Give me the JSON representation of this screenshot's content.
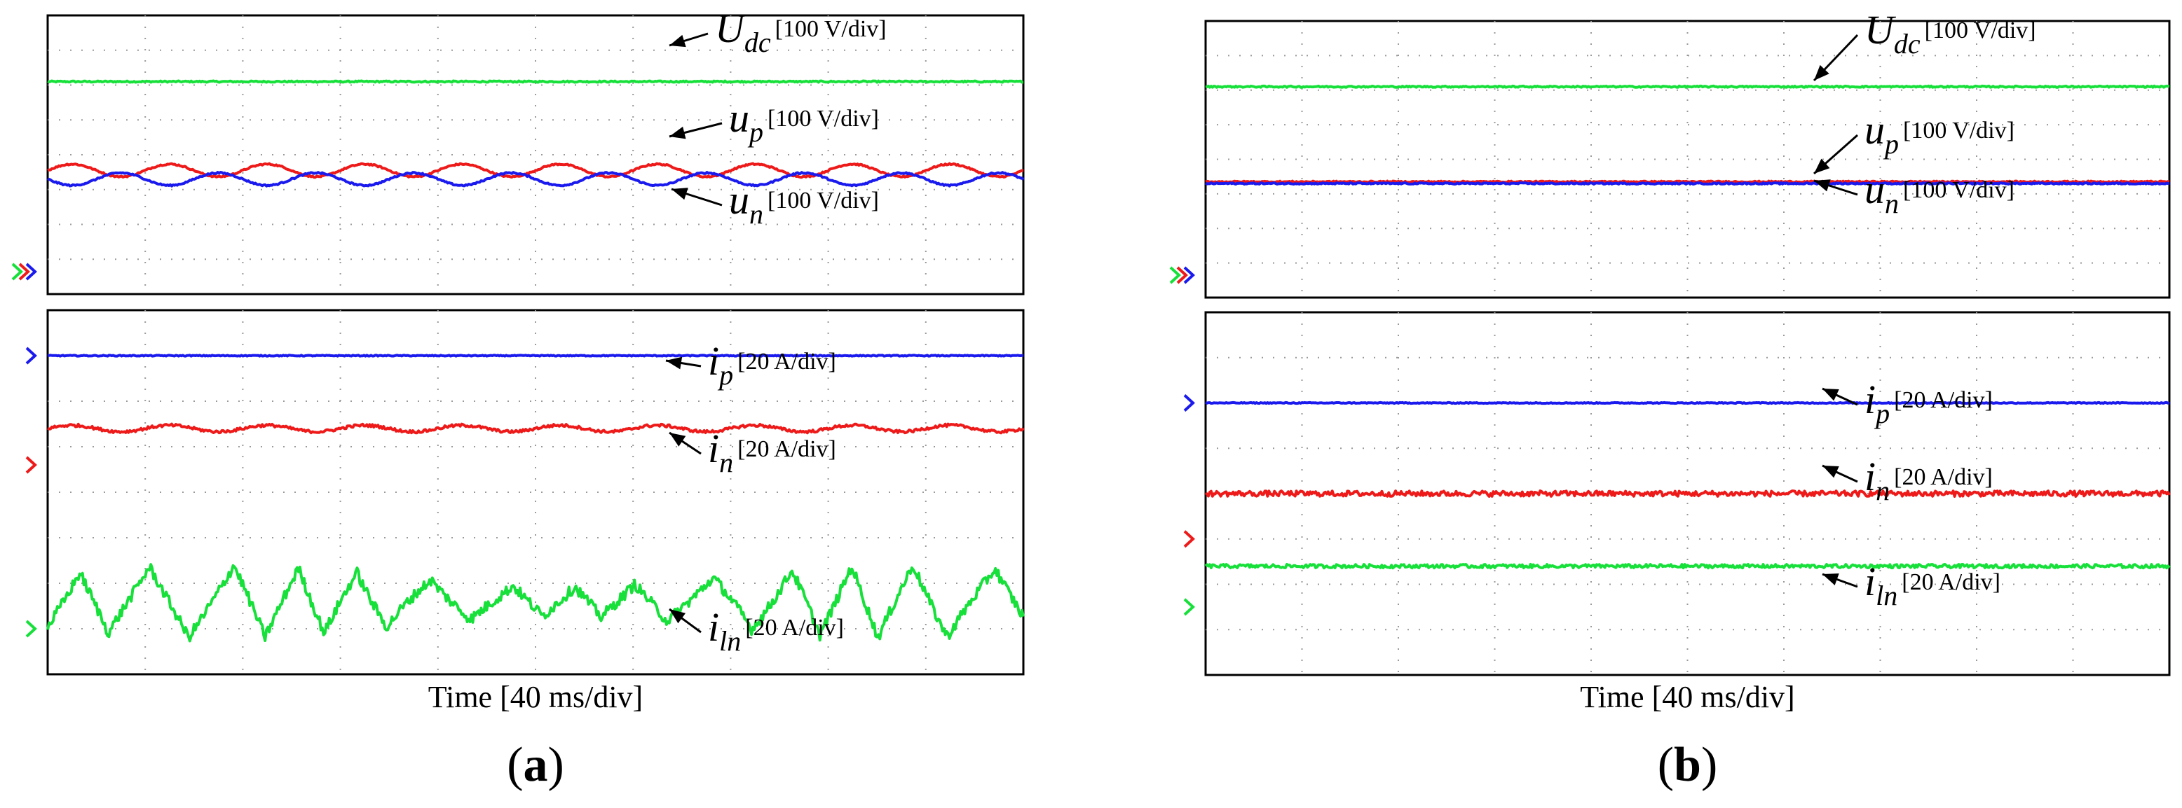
{
  "colors": {
    "green": "#17e03a",
    "red": "#ee1a1a",
    "blue": "#1a1aee",
    "grid": "#9a9a9a",
    "frame": "#000000"
  },
  "chart_data": [
    {
      "type": "line",
      "panel_label": "(a)",
      "time_label": "Time [40 ms/div]",
      "x_divisions": 10,
      "upper": {
        "y_divisions": 8,
        "series": [
          {
            "id": "udc",
            "name_main": "U",
            "name_sub": "dc",
            "scale": "[100 V/div]",
            "color": "green",
            "level_div": 6.1,
            "osc": {
              "amp": 0.0,
              "cycles": 0,
              "noise": 0.02
            }
          },
          {
            "id": "up",
            "name_main": "u",
            "name_sub": "p",
            "scale": "[100 V/div]",
            "color": "red",
            "level_div": 3.55,
            "osc": {
              "amp": 0.18,
              "cycles": 10,
              "noise": 0.02
            }
          },
          {
            "id": "un",
            "name_main": "u",
            "name_sub": "n",
            "scale": "[100 V/div]",
            "color": "blue",
            "level_div": 3.3,
            "osc": {
              "amp": 0.18,
              "cycles": 10,
              "noise": 0.02,
              "phase": 3.14
            }
          }
        ],
        "markers": [
          "green",
          "red",
          "blue"
        ]
      },
      "lower": {
        "y_divisions": 8,
        "series": [
          {
            "id": "ip",
            "name_main": "i",
            "name_sub": "p",
            "scale": "[20 A/div]",
            "color": "blue",
            "level_div": 7.0,
            "osc": {
              "amp": 0.0,
              "cycles": 0,
              "noise": 0.01
            }
          },
          {
            "id": "in",
            "name_main": "i",
            "name_sub": "n",
            "scale": "[20 A/div]",
            "color": "red",
            "level_div": 5.4,
            "osc": {
              "amp": 0.07,
              "cycles": 10,
              "noise": 0.03
            }
          },
          {
            "id": "iln",
            "name_main": "i",
            "name_sub": "ln",
            "scale": "[20 A/div]",
            "color": "green",
            "level_div": 1.6,
            "osc": {
              "amp": 0.8,
              "cycles": 14,
              "noise": 0.12,
              "sawtooth": true
            }
          }
        ],
        "markers": [
          {
            "color": "blue",
            "level_div": 7.0
          },
          {
            "color": "red",
            "level_div": 4.6
          },
          {
            "color": "green",
            "level_div": 1.0
          }
        ]
      }
    },
    {
      "type": "line",
      "panel_label": "(b)",
      "time_label": "Time [40 ms/div]",
      "x_divisions": 10,
      "upper": {
        "y_divisions": 8,
        "series": [
          {
            "id": "udc",
            "name_main": "U",
            "name_sub": "dc",
            "scale": "[100 V/div]",
            "color": "green",
            "level_div": 6.1,
            "osc": {
              "amp": 0.0,
              "cycles": 0,
              "noise": 0.02
            }
          },
          {
            "id": "up",
            "name_main": "u",
            "name_sub": "p",
            "scale": "[100 V/div]",
            "color": "red",
            "level_div": 3.35,
            "osc": {
              "amp": 0.0,
              "cycles": 0,
              "noise": 0.02
            }
          },
          {
            "id": "un",
            "name_main": "u",
            "name_sub": "n",
            "scale": "[100 V/div]",
            "color": "blue",
            "level_div": 3.3,
            "osc": {
              "amp": 0.0,
              "cycles": 0,
              "noise": 0.02
            }
          }
        ],
        "markers": [
          "green",
          "red",
          "blue"
        ]
      },
      "lower": {
        "y_divisions": 8,
        "series": [
          {
            "id": "ip",
            "name_main": "i",
            "name_sub": "p",
            "scale": "[20 A/div]",
            "color": "blue",
            "level_div": 6.0,
            "osc": {
              "amp": 0.0,
              "cycles": 0,
              "noise": 0.01
            }
          },
          {
            "id": "in",
            "name_main": "i",
            "name_sub": "n",
            "scale": "[20 A/div]",
            "color": "red",
            "level_div": 4.0,
            "osc": {
              "amp": 0.0,
              "cycles": 0,
              "noise": 0.06
            }
          },
          {
            "id": "iln",
            "name_main": "i",
            "name_sub": "ln",
            "scale": "[20 A/div]",
            "color": "green",
            "level_div": 2.4,
            "osc": {
              "amp": 0.0,
              "cycles": 0,
              "noise": 0.04
            }
          }
        ],
        "markers": [
          {
            "color": "blue",
            "level_div": 6.0
          },
          {
            "color": "red",
            "level_div": 3.0
          },
          {
            "color": "green",
            "level_div": 1.5
          }
        ]
      }
    }
  ]
}
